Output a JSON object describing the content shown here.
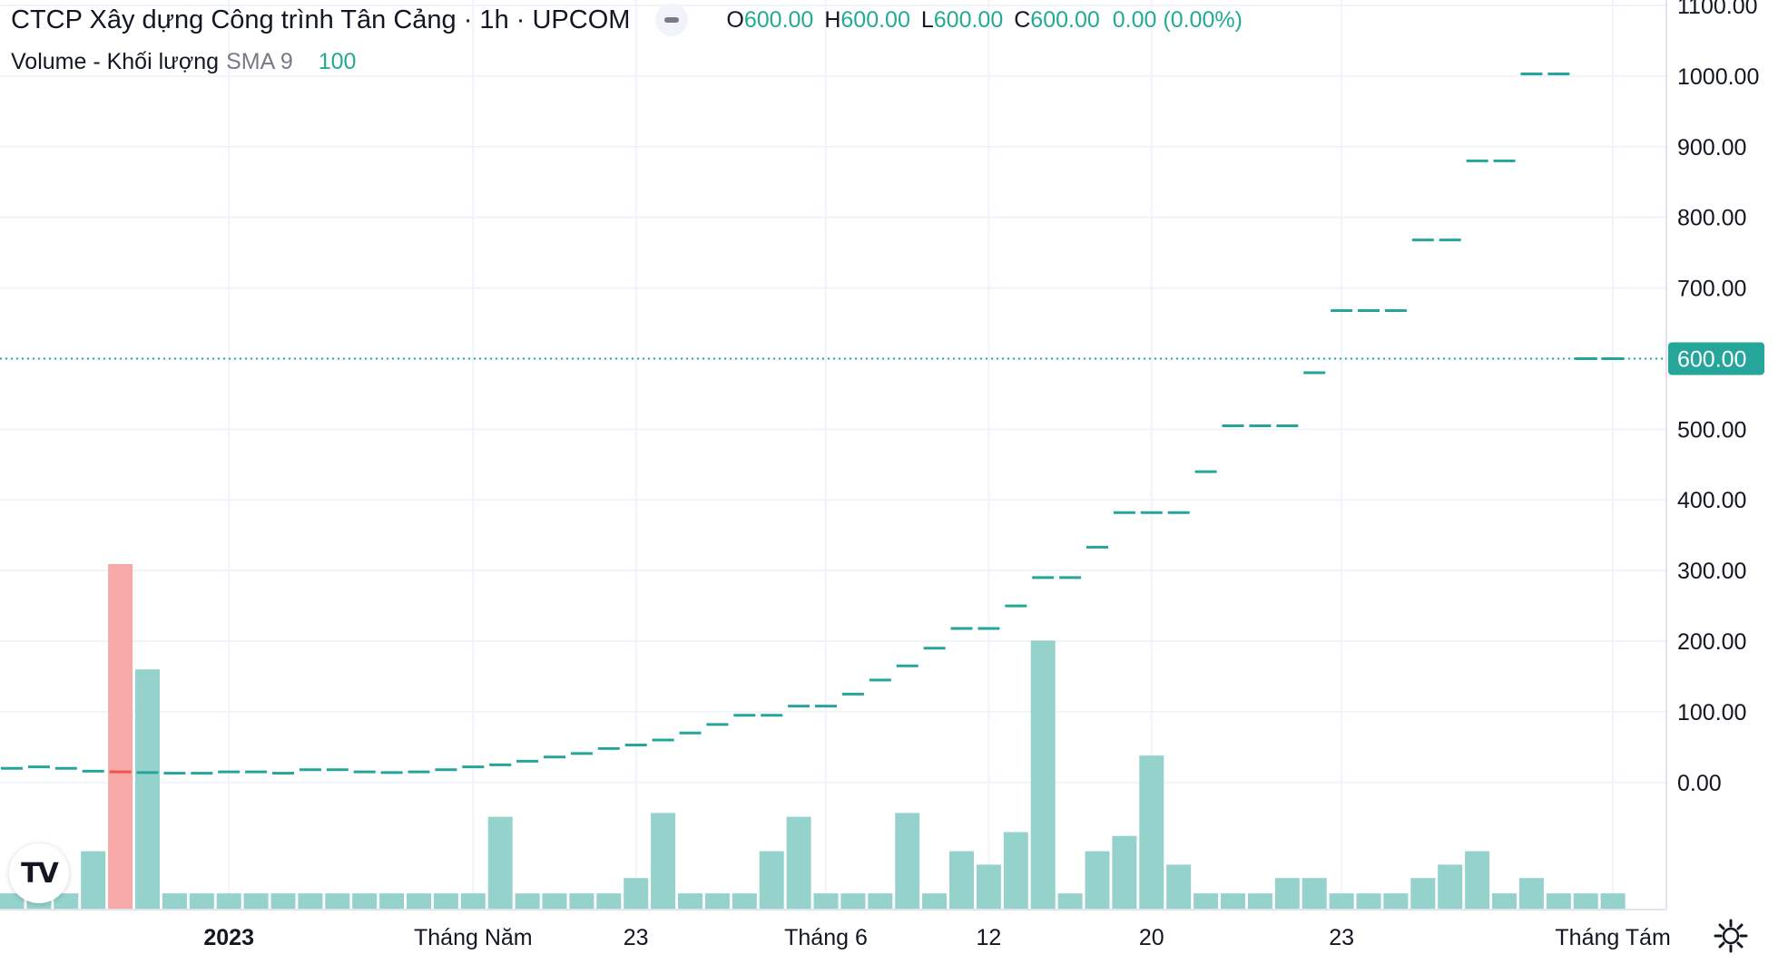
{
  "header": {
    "title": "CTCP Xây dựng Công trình Tân Cảng · 1h · UPCOM",
    "ohlc": [
      {
        "key": "O",
        "value": "600.00"
      },
      {
        "key": "H",
        "value": "600.00"
      },
      {
        "key": "L",
        "value": "600.00"
      },
      {
        "key": "C",
        "value": "600.00"
      }
    ],
    "change": "0.00 (0.00%)"
  },
  "volume_legend": {
    "name": "Volume - Khối lượng",
    "sma": "SMA 9",
    "value": "100"
  },
  "logo_text": "TV",
  "colors": {
    "up": "#26a69a",
    "up_volume": "#94d2cb",
    "down_volume": "#f7a9a7",
    "down": "#ef5350",
    "grid": "#f0f3fa",
    "text": "#131722",
    "price_line": "#26a69a"
  },
  "chart_data": {
    "type": "candlestick",
    "ylim": [
      -85,
      1100
    ],
    "yticks": [
      "1100.00",
      "1000.00",
      "900.00",
      "800.00",
      "700.00",
      "600.00",
      "500.00",
      "400.00",
      "300.00",
      "200.00",
      "100.00",
      "0.00"
    ],
    "ytick_values": [
      1100,
      1000,
      900,
      800,
      700,
      600,
      500,
      400,
      300,
      200,
      100,
      0
    ],
    "last_price": 600,
    "last_price_label": "600.00",
    "xticks": [
      {
        "label": "2023",
        "index": 8,
        "bold": true
      },
      {
        "label": "Tháng Năm",
        "index": 17
      },
      {
        "label": "23",
        "index": 23
      },
      {
        "label": "Tháng 6",
        "index": 30
      },
      {
        "label": "12",
        "index": 36
      },
      {
        "label": "20",
        "index": 42
      },
      {
        "label": "23",
        "index": 49
      },
      {
        "label": "Tháng Tám",
        "index": 59
      }
    ],
    "closes": [
      20,
      22,
      20,
      16,
      15,
      14,
      13,
      13,
      15,
      15,
      13,
      18,
      18,
      15,
      14,
      15,
      18,
      22,
      25,
      30,
      36,
      41,
      48,
      53,
      60,
      70,
      82,
      95,
      95,
      108,
      108,
      125,
      145,
      165,
      190,
      218,
      218,
      250,
      290,
      290,
      333,
      382,
      382,
      382,
      440,
      505,
      505,
      505,
      580,
      668,
      668,
      668,
      768,
      768,
      880,
      880,
      1003,
      1003,
      600,
      600
    ],
    "down_bar_index": 4,
    "volumes": [
      8,
      8,
      8,
      30,
      180,
      125,
      8,
      8,
      8,
      8,
      8,
      8,
      8,
      8,
      8,
      8,
      8,
      8,
      48,
      8,
      8,
      8,
      8,
      16,
      50,
      8,
      8,
      8,
      30,
      48,
      8,
      8,
      8,
      50,
      8,
      30,
      23,
      40,
      140,
      8,
      30,
      38,
      80,
      23,
      8,
      8,
      8,
      16,
      16,
      8,
      8,
      8,
      16,
      23,
      30,
      8,
      16,
      8,
      8,
      8
    ]
  }
}
